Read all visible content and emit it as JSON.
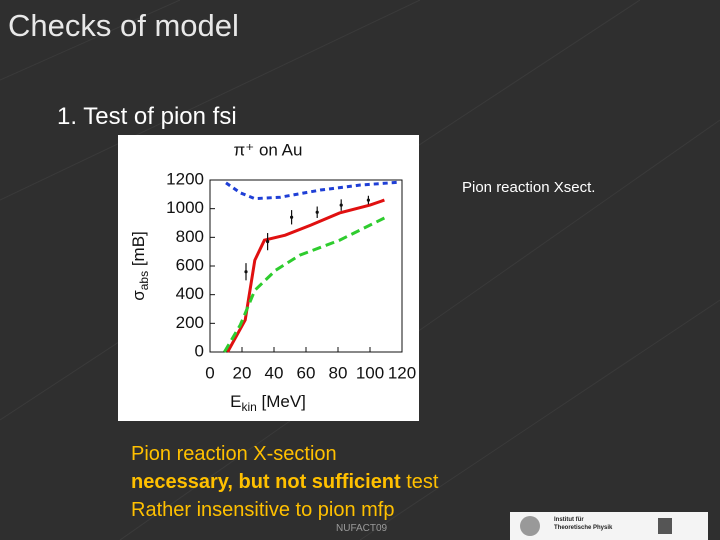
{
  "slide": {
    "title": "Checks of model",
    "subtitle": "1. Test of pion fsi",
    "caption": "Pion reaction Xsect.",
    "bullets": {
      "line1": "Pion reaction X-section",
      "line2_bold": "necessary, but not sufficient",
      "line2_rest": " test",
      "line3": "Rather insensitive to pion mfp"
    },
    "footer": "NUFACT09",
    "logo": {
      "line1": "Institut für",
      "line2": "Theoretische Physik"
    }
  },
  "chart_data": {
    "type": "line",
    "title": "π⁺ on Au",
    "x_label": {
      "symbol": "E",
      "subscript": "kin",
      "unit": " [MeV]"
    },
    "y_label": {
      "symbol": "σ",
      "subscript": "abs",
      "unit": " [mB]"
    },
    "xlim": [
      0,
      120
    ],
    "xticks": [
      0,
      20,
      40,
      60,
      80,
      100,
      120
    ],
    "ylim": [
      0,
      1200
    ],
    "yticks": [
      0,
      200,
      400,
      600,
      800,
      1000,
      1200
    ],
    "series": [
      {
        "color": "#1f3fd6",
        "style": "dotted",
        "x": [
          10,
          19,
          28,
          44,
          69,
          94,
          119
        ],
        "y": [
          1180,
          1110,
          1070,
          1080,
          1130,
          1165,
          1185
        ]
      },
      {
        "color": "#e01010",
        "style": "solid",
        "x": [
          11,
          22,
          28,
          34,
          47,
          63,
          81,
          100,
          109
        ],
        "y": [
          0,
          223,
          640,
          780,
          815,
          885,
          970,
          1025,
          1060
        ]
      },
      {
        "color": "#2ecc2e",
        "style": "dashed",
        "x": [
          9,
          19,
          28,
          41,
          56,
          81,
          109
        ],
        "y": [
          0,
          190,
          430,
          570,
          675,
          780,
          935
        ]
      },
      {
        "color": "#111111",
        "style": "points",
        "x": [
          22.5,
          36,
          51,
          67,
          82,
          99
        ],
        "y": [
          560,
          770,
          940,
          975,
          1025,
          1060
        ],
        "errors": [
          60,
          60,
          50,
          40,
          40,
          30
        ]
      }
    ]
  }
}
